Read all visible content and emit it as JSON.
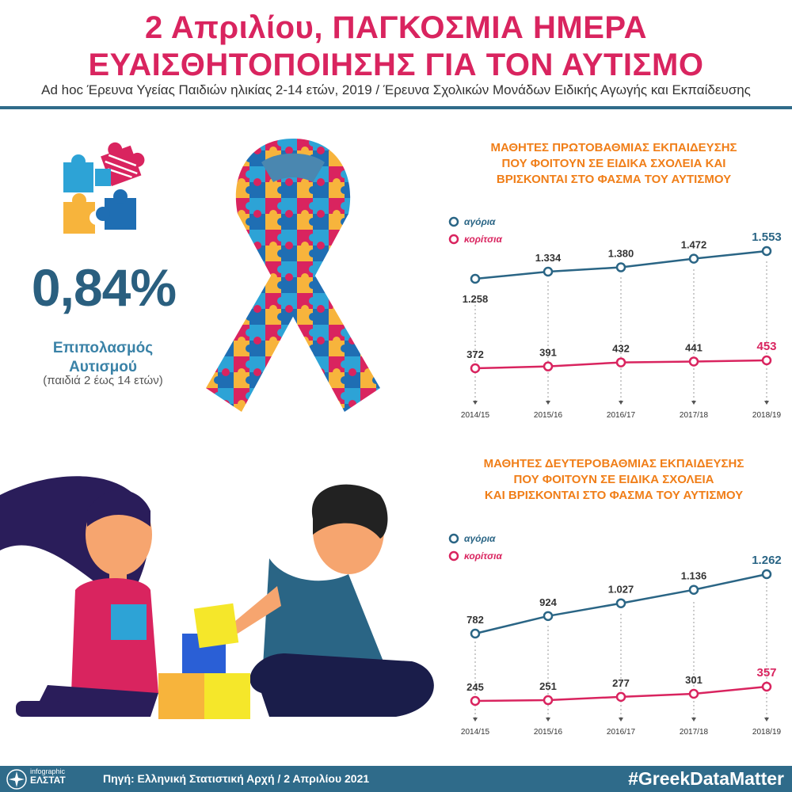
{
  "header": {
    "title_line1": "2 Απριλίου, ΠΑΓΚΟΣΜΙΑ ΗΜΕΡΑ",
    "title_line2": "ΕΥΑΙΣΘΗΤΟΠΟΙΗΣΗΣ ΓΙΑ ΤΟΝ ΑΥΤΙΣΜΟ",
    "subtitle": "Ad hoc Έρευνα Υγείας Παιδιών ηλικίας 2-14 ετών, 2019 / Έρευνα Σχολικών Μονάδων Ειδικής Αγωγής και Εκπαίδευσης"
  },
  "prevalence": {
    "value": "0,84%",
    "label_line1": "Επιπολασμός",
    "label_line2": "Αυτισμού",
    "sublabel": "(παιδιά 2 έως 14 ετών)"
  },
  "colors": {
    "boys": "#2a6585",
    "girls": "#d9245f",
    "chart_title": "#f07e18",
    "accent": "#2f6b8a"
  },
  "chart_data": [
    {
      "type": "line",
      "title_lines": [
        "ΜΑΘΗΤΕΣ ΠΡΩΤΟΒΑΘΜΙΑΣ ΕΚΠΑΙΔΕΥΣΗΣ",
        "ΠΟΥ ΦΟΙΤΟΥΝ ΣΕ ΕΙΔΙΚΑ ΣΧΟΛΕΙΑ ΚΑΙ",
        "ΒΡΙΣΚΟΝΤΑΙ ΣΤΟ ΦΑΣΜΑ ΤΟΥ ΑΥΤΙΣΜΟΥ"
      ],
      "categories": [
        "2014/15",
        "2015/16",
        "2016/17",
        "2017/18",
        "2018/19"
      ],
      "series": [
        {
          "name": "αγόρια",
          "values": [
            1258,
            1334,
            1380,
            1472,
            1553
          ],
          "labels": [
            "1.258",
            "1.334",
            "1.380",
            "1.472",
            "1.553"
          ]
        },
        {
          "name": "κορίτσια",
          "values": [
            372,
            391,
            432,
            441,
            453
          ],
          "labels": [
            "372",
            "391",
            "432",
            "441",
            "453"
          ]
        }
      ],
      "legend_position": "top-left"
    },
    {
      "type": "line",
      "title_lines": [
        "ΜΑΘΗΤΕΣ ΔΕΥΤΕΡΟΒΑΘΜΙΑΣ ΕΚΠΑΙΔΕΥΣΗΣ",
        "ΠΟΥ ΦΟΙΤΟΥΝ ΣΕ ΕΙΔΙΚΑ ΣΧΟΛΕΙΑ",
        "ΚΑΙ ΒΡΙΣΚΟΝΤΑΙ ΣΤΟ ΦΑΣΜΑ ΤΟΥ ΑΥΤΙΣΜΟΥ"
      ],
      "categories": [
        "2014/15",
        "2015/16",
        "2016/17",
        "2017/18",
        "2018/19"
      ],
      "series": [
        {
          "name": "αγόρια",
          "values": [
            782,
            924,
            1027,
            1136,
            1262
          ],
          "labels": [
            "782",
            "924",
            "1.027",
            "1.136",
            "1.262"
          ]
        },
        {
          "name": "κορίτσια",
          "values": [
            245,
            251,
            277,
            301,
            357
          ],
          "labels": [
            "245",
            "251",
            "277",
            "301",
            "357"
          ]
        }
      ],
      "legend_position": "top-left"
    }
  ],
  "footer": {
    "logo_line1": "infographic",
    "logo_line2": "ΕΛΣΤΑΤ",
    "source": "Πηγή: Ελληνική Στατιστική Αρχή  / 2  Απριλίου 2021",
    "hashtag": "#GreekDataMatter"
  }
}
